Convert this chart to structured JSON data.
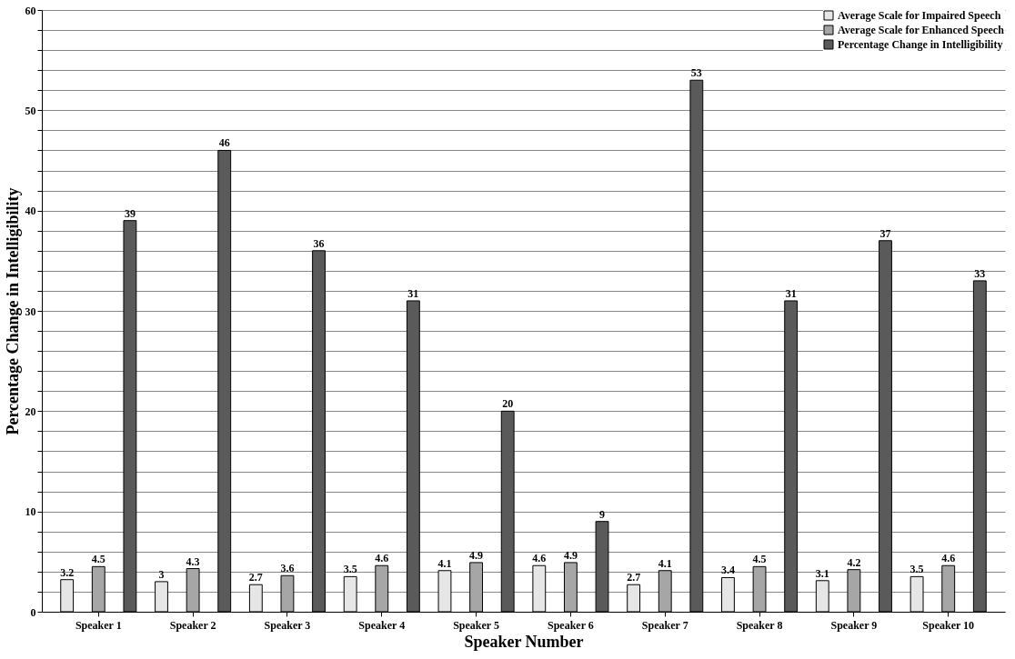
{
  "chart_data": {
    "type": "bar",
    "xlabel": "Speaker Number",
    "ylabel": "Percentage Change in Intelligibility",
    "categories": [
      "Speaker 1",
      "Speaker 2",
      "Speaker 3",
      "Speaker 4",
      "Speaker 5",
      "Speaker 6",
      "Speaker 7",
      "Speaker 8",
      "Speaker 9",
      "Speaker 10"
    ],
    "series": [
      {
        "name": "Average Scale for Impaired Speech",
        "color": "#e6e6e6",
        "values": [
          3.2,
          3,
          2.7,
          3.5,
          4.1,
          4.6,
          2.7,
          3.4,
          3.1,
          3.5
        ]
      },
      {
        "name": "Average Scale for Enhanced Speech",
        "color": "#a6a6a6",
        "values": [
          4.5,
          4.3,
          3.6,
          4.6,
          4.9,
          4.9,
          4.1,
          4.5,
          4.2,
          4.6
        ]
      },
      {
        "name": "Percentage Change in Intelligibility",
        "color": "#5a5a5a",
        "values": [
          39,
          46,
          36,
          31,
          20,
          9,
          53,
          31,
          37,
          33
        ]
      }
    ],
    "ylim": [
      0,
      60
    ],
    "yticks": [
      0,
      {
        "value": 2,
        "label": null
      },
      {
        "value": 4,
        "label": null
      },
      {
        "value": 6,
        "label": null
      },
      {
        "value": 8,
        "label": null
      },
      10,
      {
        "value": 12,
        "label": null
      },
      {
        "value": 14,
        "label": null
      },
      {
        "value": 16,
        "label": null
      },
      {
        "value": 18,
        "label": null
      },
      20,
      {
        "value": 22,
        "label": null
      },
      {
        "value": 24,
        "label": null
      },
      {
        "value": 26,
        "label": null
      },
      {
        "value": 28,
        "label": null
      },
      30,
      {
        "value": 32,
        "label": null
      },
      {
        "value": 34,
        "label": null
      },
      {
        "value": 36,
        "label": null
      },
      {
        "value": 38,
        "label": null
      },
      40,
      {
        "value": 42,
        "label": null
      },
      {
        "value": 44,
        "label": null
      },
      {
        "value": 46,
        "label": null
      },
      {
        "value": 48,
        "label": null
      },
      50,
      {
        "value": 52,
        "label": null
      },
      {
        "value": 54,
        "label": null
      },
      {
        "value": 56,
        "label": null
      },
      {
        "value": 58,
        "label": null
      },
      60
    ],
    "grid": true,
    "legend": "top right",
    "data_labels": true
  }
}
